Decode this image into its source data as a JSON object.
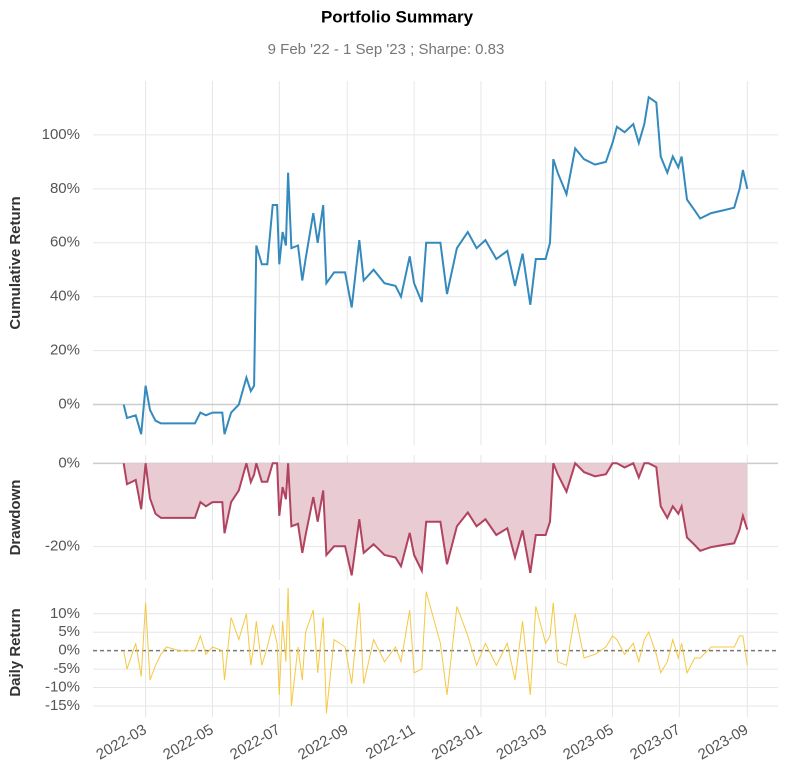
{
  "chart_data": [
    {
      "type": "line",
      "title": "Portfolio Summary",
      "subtitle": "9 Feb '22 -  1 Sep '23 ;  Sharpe: 0.83",
      "ylabel": "Cumulative Return",
      "color": "#348abd",
      "grid": true,
      "x": [
        "2022-02-09",
        "2022-02-12",
        "2022-02-20",
        "2022-02-25",
        "2022-03-01",
        "2022-03-05",
        "2022-03-10",
        "2022-03-15",
        "2022-03-20",
        "2022-04-01",
        "2022-04-15",
        "2022-04-20",
        "2022-04-25",
        "2022-05-01",
        "2022-05-10",
        "2022-05-12",
        "2022-05-18",
        "2022-05-25",
        "2022-06-01",
        "2022-06-05",
        "2022-06-08",
        "2022-06-10",
        "2022-06-15",
        "2022-06-20",
        "2022-06-25",
        "2022-06-29",
        "2022-07-01",
        "2022-07-04",
        "2022-07-07",
        "2022-07-09",
        "2022-07-12",
        "2022-07-18",
        "2022-07-22",
        "2022-07-25",
        "2022-08-01",
        "2022-08-05",
        "2022-08-10",
        "2022-08-13",
        "2022-08-20",
        "2022-08-30",
        "2022-09-05",
        "2022-09-12",
        "2022-09-16",
        "2022-09-25",
        "2022-10-05",
        "2022-10-15",
        "2022-10-20",
        "2022-10-28",
        "2022-11-01",
        "2022-11-08",
        "2022-11-12",
        "2022-11-25",
        "2022-12-01",
        "2022-12-10",
        "2022-12-20",
        "2022-12-28",
        "2023-01-05",
        "2023-01-15",
        "2023-01-25",
        "2023-02-01",
        "2023-02-08",
        "2023-02-15",
        "2023-02-20",
        "2023-03-01",
        "2023-03-05",
        "2023-03-08",
        "2023-03-12",
        "2023-03-20",
        "2023-03-28",
        "2023-04-05",
        "2023-04-15",
        "2023-04-25",
        "2023-05-01",
        "2023-05-05",
        "2023-05-12",
        "2023-05-20",
        "2023-05-25",
        "2023-05-30",
        "2023-06-03",
        "2023-06-10",
        "2023-06-14",
        "2023-06-20",
        "2023-06-25",
        "2023-06-30",
        "2023-07-03",
        "2023-07-08",
        "2023-07-15",
        "2023-07-20",
        "2023-07-30",
        "2023-08-10",
        "2023-08-20",
        "2023-08-25",
        "2023-08-28",
        "2023-09-01"
      ],
      "values": [
        0,
        -5,
        -4,
        -11,
        7,
        -2,
        -6,
        -7,
        -7,
        -7,
        -7,
        -3,
        -4,
        -3,
        -3,
        -11,
        -3,
        0,
        10,
        5,
        7,
        59,
        52,
        52,
        74,
        74,
        52,
        64,
        59,
        86,
        58,
        59,
        46,
        54,
        71,
        60,
        74,
        45,
        49,
        49,
        36,
        61,
        46,
        50,
        45,
        44,
        40,
        55,
        45,
        38,
        60,
        60,
        41,
        58,
        64,
        58,
        61,
        54,
        57,
        44,
        56,
        37,
        54,
        54,
        60,
        91,
        86,
        78,
        95,
        91,
        89,
        90,
        97,
        103,
        101,
        104,
        97,
        104,
        114,
        112,
        92,
        86,
        92,
        88,
        92,
        76,
        72,
        69,
        71,
        72,
        73,
        80,
        87,
        80
      ],
      "xlim": [
        "2022-01-12",
        "2023-09-29"
      ],
      "ylim": [
        -15,
        120
      ],
      "yticks": [
        {
          "value": 0,
          "label": "0%"
        },
        {
          "value": 20,
          "label": "20%"
        },
        {
          "value": 40,
          "label": "40%"
        },
        {
          "value": 60,
          "label": "60%"
        },
        {
          "value": 80,
          "label": "80%"
        },
        {
          "value": 100,
          "label": "100%"
        }
      ]
    },
    {
      "type": "area",
      "ylabel": "Drawdown",
      "color": "#b1435f",
      "fill": "#e8cbd3",
      "grid": true,
      "x": [
        "2022-02-09",
        "2022-02-12",
        "2022-02-20",
        "2022-02-25",
        "2022-03-01",
        "2022-03-05",
        "2022-03-10",
        "2022-03-15",
        "2022-03-20",
        "2022-04-01",
        "2022-04-15",
        "2022-04-20",
        "2022-04-25",
        "2022-05-01",
        "2022-05-10",
        "2022-05-12",
        "2022-05-18",
        "2022-05-25",
        "2022-06-01",
        "2022-06-05",
        "2022-06-08",
        "2022-06-10",
        "2022-06-15",
        "2022-06-20",
        "2022-06-25",
        "2022-06-29",
        "2022-07-01",
        "2022-07-04",
        "2022-07-07",
        "2022-07-09",
        "2022-07-12",
        "2022-07-18",
        "2022-07-22",
        "2022-07-25",
        "2022-08-01",
        "2022-08-05",
        "2022-08-10",
        "2022-08-13",
        "2022-08-20",
        "2022-08-30",
        "2022-09-05",
        "2022-09-12",
        "2022-09-16",
        "2022-09-25",
        "2022-10-05",
        "2022-10-15",
        "2022-10-20",
        "2022-10-28",
        "2022-11-01",
        "2022-11-08",
        "2022-11-12",
        "2022-11-25",
        "2022-12-01",
        "2022-12-10",
        "2022-12-20",
        "2022-12-28",
        "2023-01-05",
        "2023-01-15",
        "2023-01-25",
        "2023-02-01",
        "2023-02-08",
        "2023-02-15",
        "2023-02-20",
        "2023-03-01",
        "2023-03-05",
        "2023-03-08",
        "2023-03-12",
        "2023-03-20",
        "2023-03-28",
        "2023-04-05",
        "2023-04-15",
        "2023-04-25",
        "2023-05-01",
        "2023-05-05",
        "2023-05-12",
        "2023-05-20",
        "2023-05-25",
        "2023-05-30",
        "2023-06-03",
        "2023-06-10",
        "2023-06-14",
        "2023-06-20",
        "2023-06-25",
        "2023-06-30",
        "2023-07-03",
        "2023-07-08",
        "2023-07-15",
        "2023-07-20",
        "2023-07-30",
        "2023-08-10",
        "2023-08-20",
        "2023-08-25",
        "2023-08-28",
        "2023-09-01"
      ],
      "values": [
        0,
        -5,
        -4,
        -11,
        0,
        -8.4,
        -12.1,
        -13.1,
        -13.1,
        -13.1,
        -13.1,
        -9.3,
        -10.3,
        -9.3,
        -9.3,
        -16.8,
        -9.3,
        -6.5,
        0,
        -4.5,
        -2.7,
        0,
        -4.4,
        -4.4,
        0,
        0,
        -12.6,
        -5.7,
        -8.6,
        0,
        -15.1,
        -14.5,
        -21.5,
        -17.2,
        -8.1,
        -14,
        -6.5,
        -22,
        -19.9,
        -19.9,
        -26.9,
        -13.4,
        -21.5,
        -19.4,
        -22,
        -22.6,
        -24.7,
        -16.7,
        -22,
        -25.8,
        -14,
        -14,
        -24.2,
        -15.1,
        -11.8,
        -15.1,
        -13.4,
        -17.2,
        -15.6,
        -22.6,
        -16.1,
        -26.3,
        -17.2,
        -17.2,
        -14,
        0,
        -2.6,
        -6.8,
        0,
        -2.1,
        -3.1,
        -2.6,
        0,
        0,
        -1,
        0,
        -3.4,
        0,
        0,
        -0.9,
        -10.3,
        -13.1,
        -10.3,
        -12.1,
        -10.3,
        -17.8,
        -19.6,
        -21,
        -20.1,
        -19.6,
        -19.2,
        -15.9,
        -12.6,
        -15.9
      ],
      "xlim": [
        "2022-01-12",
        "2023-09-29"
      ],
      "ylim": [
        -28,
        2
      ],
      "yticks": [
        {
          "value": 0,
          "label": "0%"
        },
        {
          "value": -20,
          "label": "-20%"
        }
      ]
    },
    {
      "type": "line",
      "ylabel": "Daily Return",
      "color": "#f5c842",
      "grid": true,
      "x": [
        "2022-02-09",
        "2022-02-12",
        "2022-02-20",
        "2022-02-25",
        "2022-03-01",
        "2022-03-05",
        "2022-03-10",
        "2022-03-15",
        "2022-03-20",
        "2022-04-01",
        "2022-04-15",
        "2022-04-20",
        "2022-04-25",
        "2022-05-01",
        "2022-05-10",
        "2022-05-12",
        "2022-05-18",
        "2022-05-25",
        "2022-06-01",
        "2022-06-05",
        "2022-06-08",
        "2022-06-10",
        "2022-06-15",
        "2022-06-20",
        "2022-06-25",
        "2022-06-29",
        "2022-07-01",
        "2022-07-04",
        "2022-07-07",
        "2022-07-09",
        "2022-07-12",
        "2022-07-18",
        "2022-07-22",
        "2022-07-25",
        "2022-08-01",
        "2022-08-05",
        "2022-08-10",
        "2022-08-13",
        "2022-08-20",
        "2022-08-30",
        "2022-09-05",
        "2022-09-12",
        "2022-09-16",
        "2022-09-25",
        "2022-10-05",
        "2022-10-15",
        "2022-10-20",
        "2022-10-28",
        "2022-11-01",
        "2022-11-08",
        "2022-11-12",
        "2022-11-25",
        "2022-12-01",
        "2022-12-10",
        "2022-12-20",
        "2022-12-28",
        "2023-01-05",
        "2023-01-15",
        "2023-01-25",
        "2023-02-01",
        "2023-02-08",
        "2023-02-15",
        "2023-02-20",
        "2023-03-01",
        "2023-03-05",
        "2023-03-08",
        "2023-03-12",
        "2023-03-20",
        "2023-03-28",
        "2023-04-05",
        "2023-04-15",
        "2023-04-25",
        "2023-05-01",
        "2023-05-05",
        "2023-05-12",
        "2023-05-20",
        "2023-05-25",
        "2023-05-30",
        "2023-06-03",
        "2023-06-10",
        "2023-06-14",
        "2023-06-20",
        "2023-06-25",
        "2023-06-30",
        "2023-07-03",
        "2023-07-08",
        "2023-07-15",
        "2023-07-20",
        "2023-07-30",
        "2023-08-10",
        "2023-08-20",
        "2023-08-25",
        "2023-08-28",
        "2023-09-01"
      ],
      "values": [
        0,
        -5,
        2,
        -7,
        13,
        -8,
        -4,
        -1,
        1,
        0,
        0,
        4,
        -1,
        1,
        0,
        -8,
        9,
        3,
        10,
        -4,
        2,
        8,
        -4,
        1,
        7,
        2,
        -12,
        8,
        -3,
        17,
        -15,
        1,
        -8,
        5,
        11,
        -6,
        9,
        -17,
        3,
        1,
        -9,
        13,
        -9,
        3,
        -3,
        1,
        -3,
        11,
        -6,
        -5,
        16,
        2,
        -12,
        12,
        4,
        -4,
        2,
        -4,
        2,
        -8,
        8,
        -12,
        12,
        2,
        4,
        13,
        -3,
        -4,
        10,
        -2,
        -1,
        1,
        4,
        3,
        -1,
        2,
        -3,
        3,
        5,
        -1,
        -6,
        -3,
        3,
        -2,
        2,
        -6,
        -2,
        -2,
        1,
        1,
        1,
        4,
        4,
        -4
      ],
      "xlim": [
        "2022-01-12",
        "2023-09-29"
      ],
      "ylim": [
        -18,
        17
      ],
      "yticks": [
        {
          "value": 10,
          "label": "10%"
        },
        {
          "value": 5,
          "label": "5%"
        },
        {
          "value": 0,
          "label": "0%"
        },
        {
          "value": -5,
          "label": "-5%"
        },
        {
          "value": -10,
          "label": "-10%"
        },
        {
          "value": -15,
          "label": "-15%"
        }
      ],
      "xticks": [
        {
          "value": "2022-03-01",
          "label": "2022-03"
        },
        {
          "value": "2022-05-01",
          "label": "2022-05"
        },
        {
          "value": "2022-07-01",
          "label": "2022-07"
        },
        {
          "value": "2022-09-01",
          "label": "2022-09"
        },
        {
          "value": "2022-11-01",
          "label": "2022-11"
        },
        {
          "value": "2023-01-01",
          "label": "2023-01"
        },
        {
          "value": "2023-03-01",
          "label": "2023-03"
        },
        {
          "value": "2023-05-01",
          "label": "2023-05"
        },
        {
          "value": "2023-07-01",
          "label": "2023-07"
        },
        {
          "value": "2023-09-01",
          "label": "2023-09"
        }
      ]
    }
  ]
}
